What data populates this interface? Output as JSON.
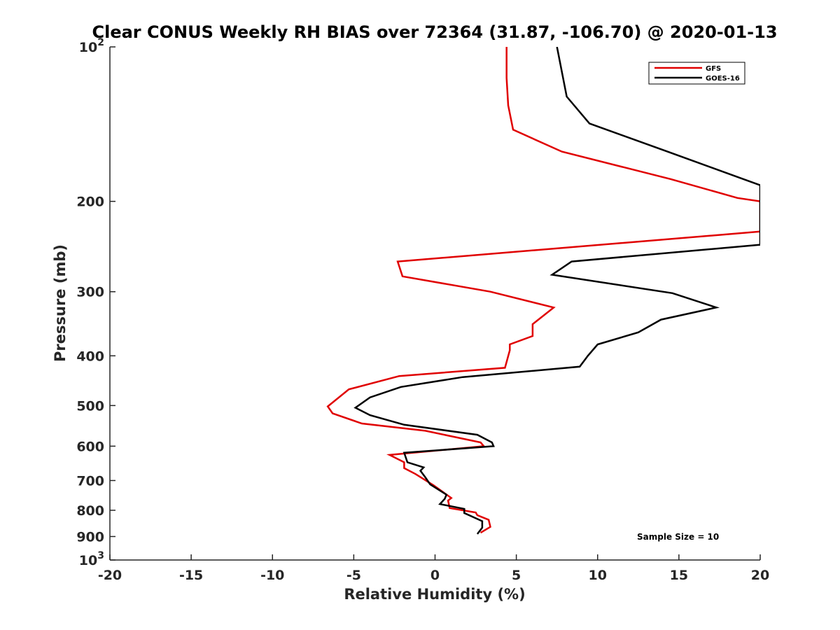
{
  "chart_data": {
    "type": "line",
    "title": "Clear CONUS Weekly RH BIAS over 72364 (31.87, -106.70) @ 2020-01-13",
    "xlabel": "Relative Humidity (%)",
    "ylabel": "Pressure (mb)",
    "xlim": [
      -20,
      20
    ],
    "ylim": [
      1000,
      100
    ],
    "y_scale": "log",
    "y_reversed": true,
    "grid": false,
    "legend_position": "top-right",
    "x_ticks": [
      {
        "value": -20,
        "label": "-20"
      },
      {
        "value": -15,
        "label": "-15"
      },
      {
        "value": -10,
        "label": "-10"
      },
      {
        "value": -5,
        "label": "-5"
      },
      {
        "value": 0,
        "label": "0"
      },
      {
        "value": 5,
        "label": "5"
      },
      {
        "value": 10,
        "label": "10"
      },
      {
        "value": 15,
        "label": "15"
      },
      {
        "value": 20,
        "label": "20"
      }
    ],
    "y_ticks": [
      {
        "value": 100,
        "base": "10",
        "exp": "2"
      },
      {
        "value": 200,
        "label": "200"
      },
      {
        "value": 300,
        "label": "300"
      },
      {
        "value": 400,
        "label": "400"
      },
      {
        "value": 500,
        "label": "500"
      },
      {
        "value": 600,
        "label": "600"
      },
      {
        "value": 700,
        "label": "700"
      },
      {
        "value": 800,
        "label": "800"
      },
      {
        "value": 900,
        "label": "900"
      },
      {
        "value": 1000,
        "base": "10",
        "exp": "3"
      }
    ],
    "series": [
      {
        "name": "GFS",
        "color": "#e00000",
        "points": [
          [
            2.8,
            885
          ],
          [
            3.4,
            862
          ],
          [
            3.3,
            835
          ],
          [
            2.6,
            818
          ],
          [
            2.5,
            808
          ],
          [
            0.9,
            792
          ],
          [
            0.8,
            766
          ],
          [
            1.0,
            757
          ],
          [
            -0.1,
            715
          ],
          [
            -1.2,
            680
          ],
          [
            -1.9,
            662
          ],
          [
            -1.9,
            645
          ],
          [
            -2.8,
            624
          ],
          [
            3.0,
            600
          ],
          [
            2.8,
            590
          ],
          [
            -0.6,
            560
          ],
          [
            -4.5,
            542
          ],
          [
            -6.3,
            518
          ],
          [
            -6.6,
            502
          ],
          [
            -5.3,
            465
          ],
          [
            -2.2,
            438
          ],
          [
            4.3,
            422
          ],
          [
            4.6,
            390
          ],
          [
            4.6,
            380
          ],
          [
            6.0,
            366
          ],
          [
            6.0,
            347
          ],
          [
            7.3,
            322
          ],
          [
            3.4,
            300
          ],
          [
            -2.0,
            280
          ],
          [
            -2.3,
            262
          ],
          [
            20,
            229
          ],
          [
            20,
            200
          ],
          [
            18.6,
            197
          ],
          [
            14.5,
            181
          ],
          [
            7.8,
            160
          ],
          [
            4.8,
            145
          ],
          [
            4.5,
            130
          ],
          [
            4.4,
            115
          ],
          [
            4.4,
            100
          ]
        ]
      },
      {
        "name": "GOES-16",
        "color": "#000000",
        "points": [
          [
            2.6,
            890
          ],
          [
            2.9,
            865
          ],
          [
            2.9,
            840
          ],
          [
            1.8,
            810
          ],
          [
            1.8,
            795
          ],
          [
            0.3,
            778
          ],
          [
            0.6,
            760
          ],
          [
            0.7,
            746
          ],
          [
            -0.3,
            712
          ],
          [
            -0.6,
            690
          ],
          [
            -0.9,
            670
          ],
          [
            -0.7,
            660
          ],
          [
            -1.7,
            645
          ],
          [
            -1.9,
            618
          ],
          [
            3.6,
            600
          ],
          [
            3.5,
            590
          ],
          [
            2.6,
            570
          ],
          [
            -1.9,
            545
          ],
          [
            -4.0,
            522
          ],
          [
            -4.9,
            505
          ],
          [
            -4.0,
            482
          ],
          [
            -2.1,
            460
          ],
          [
            1.7,
            440
          ],
          [
            8.9,
            420
          ],
          [
            9.4,
            400
          ],
          [
            10.0,
            380
          ],
          [
            12.5,
            360
          ],
          [
            13.9,
            340
          ],
          [
            17.3,
            322
          ],
          [
            14.6,
            302
          ],
          [
            7.2,
            278
          ],
          [
            8.4,
            262
          ],
          [
            20,
            243
          ],
          [
            20,
            186
          ],
          [
            14.3,
            160
          ],
          [
            9.5,
            141
          ],
          [
            8.1,
            125
          ],
          [
            7.5,
            100
          ]
        ]
      }
    ],
    "annotations": [
      {
        "text": "Sample Size = 10"
      }
    ]
  }
}
